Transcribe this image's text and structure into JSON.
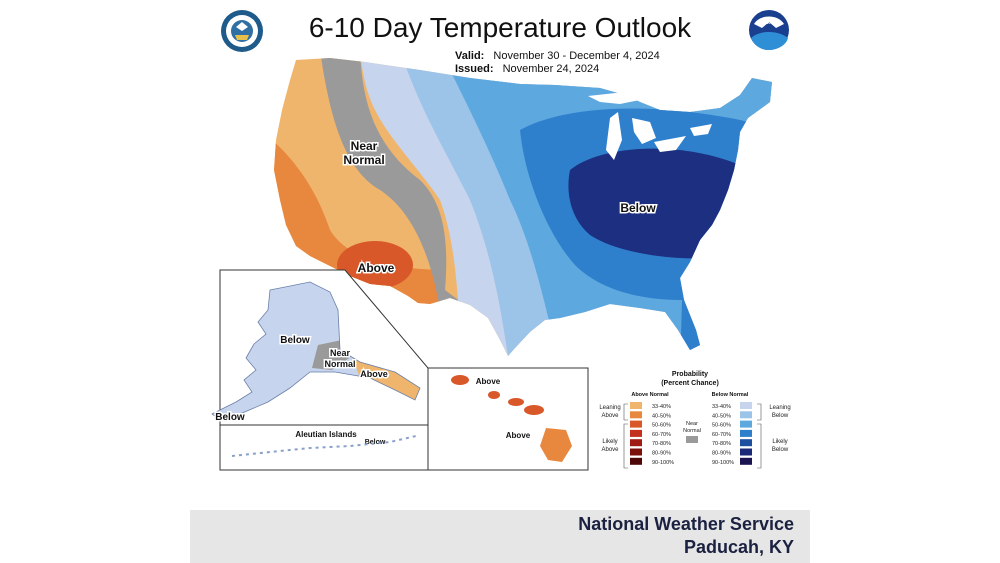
{
  "title": "6-10 Day Temperature Outlook",
  "valid_label": "Valid:",
  "valid_value": "November 30 - December 4, 2024",
  "issued_label": "Issued:",
  "issued_value": "November 24, 2024",
  "map_labels": {
    "near_normal_1": "Near",
    "near_normal_2": "Normal",
    "above": "Above",
    "below": "Below"
  },
  "alaska": {
    "below": "Below",
    "near_1": "Near",
    "near_2": "Normal",
    "above": "Above",
    "below_sw": "Below",
    "aleutian_title": "Aleutian Islands",
    "aleutian_below": "Below"
  },
  "hawaii": {
    "above_1": "Above",
    "above_2": "Above"
  },
  "legend": {
    "title_1": "Probability",
    "title_2": "(Percent Chance)",
    "above_header": "Above Normal",
    "below_header": "Below Normal",
    "leaning_above_1": "Leaning",
    "leaning_above_2": "Above",
    "likely_above_1": "Likely",
    "likely_above_2": "Above",
    "near_1": "Near",
    "near_2": "Normal",
    "leaning_below_1": "Leaning",
    "leaning_below_2": "Below",
    "likely_below_1": "Likely",
    "likely_below_2": "Below",
    "above_bins": [
      "33-40%",
      "40-50%",
      "50-60%",
      "60-70%",
      "70-80%",
      "80-90%",
      "90-100%"
    ],
    "below_bins": [
      "33-40%",
      "40-50%",
      "50-60%",
      "60-70%",
      "70-80%",
      "80-90%",
      "90-100%"
    ],
    "above_colors": [
      "#f0b56c",
      "#e8883f",
      "#d9582a",
      "#c4301e",
      "#a01b14",
      "#7a0f0c",
      "#4e0707"
    ],
    "below_colors": [
      "#c6d4ee",
      "#9cc3e8",
      "#5ea8e0",
      "#2f80cc",
      "#1d4fa0",
      "#1a2a78",
      "#1a1450"
    ],
    "near_color": "#9a9a9a"
  },
  "footer": {
    "line1": "National Weather Service",
    "line2": "Paducah, KY"
  },
  "logos": {
    "left": "doc-seal",
    "right": "noaa-logo"
  }
}
